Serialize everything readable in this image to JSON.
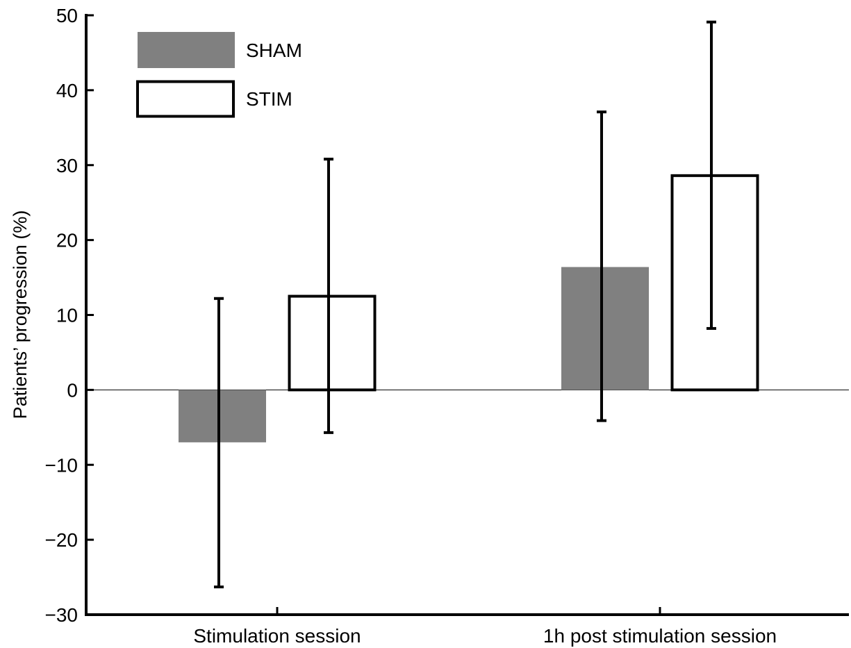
{
  "chart_data": {
    "type": "bar",
    "title": "",
    "xlabel": "",
    "ylabel": "Patients’ progression (%)",
    "ylim": [
      -30,
      50
    ],
    "yticks": [
      -30,
      -20,
      -10,
      0,
      10,
      20,
      30,
      40,
      50
    ],
    "ytick_labels": [
      "−30",
      "−20",
      "−10",
      "0",
      "10",
      "20",
      "30",
      "40",
      "50"
    ],
    "categories": [
      "Stimulation session",
      "1h post stimulation session"
    ],
    "series": [
      {
        "name": "SHAM",
        "color": "#808080",
        "fill": true,
        "values": [
          -7,
          16.4
        ],
        "error_low": [
          -26.3,
          -4.1
        ],
        "error_high": [
          12.2,
          37.1
        ]
      },
      {
        "name": "STIM",
        "color": "#000000",
        "fill": false,
        "values": [
          12.5,
          28.6
        ],
        "error_low": [
          -5.7,
          8.2
        ],
        "error_high": [
          30.8,
          49.1
        ]
      }
    ],
    "grid": false,
    "legend_position": "top-left"
  }
}
